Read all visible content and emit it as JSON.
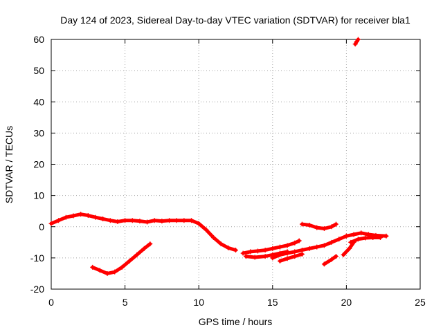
{
  "chart_data": {
    "type": "scatter",
    "title": "Day 124 of 2023, Sidereal Day-to-day VTEC variation (SDTVAR) for receiver bla1",
    "xlabel": "GPS time / hours",
    "ylabel": "SDTVAR / TECUs",
    "xlim": [
      0,
      25
    ],
    "ylim": [
      -20,
      60
    ],
    "xticks": [
      0,
      5,
      10,
      15,
      20,
      25
    ],
    "yticks": [
      -20,
      -10,
      0,
      10,
      20,
      30,
      40,
      50,
      60
    ],
    "grid": true,
    "marker": "+",
    "color": "#ff0000",
    "series": [
      {
        "name": "main-track",
        "points": [
          [
            0.0,
            1.0
          ],
          [
            0.5,
            2.0
          ],
          [
            1.0,
            3.0
          ],
          [
            1.5,
            3.5
          ],
          [
            2.0,
            4.0
          ],
          [
            2.5,
            3.6
          ],
          [
            3.0,
            3.0
          ],
          [
            3.5,
            2.5
          ],
          [
            4.0,
            2.0
          ],
          [
            4.5,
            1.6
          ],
          [
            5.0,
            2.0
          ],
          [
            5.5,
            2.0
          ],
          [
            6.0,
            1.8
          ],
          [
            6.5,
            1.5
          ],
          [
            7.0,
            2.0
          ],
          [
            7.5,
            1.8
          ],
          [
            8.0,
            2.0
          ],
          [
            8.5,
            2.0
          ],
          [
            9.0,
            2.0
          ],
          [
            9.5,
            2.0
          ],
          [
            10.0,
            1.0
          ],
          [
            10.5,
            -1.0
          ],
          [
            11.0,
            -3.5
          ],
          [
            11.5,
            -5.5
          ],
          [
            12.0,
            -6.8
          ],
          [
            12.5,
            -7.5
          ]
        ]
      },
      {
        "name": "low-arc",
        "points": [
          [
            2.8,
            -13.0
          ],
          [
            3.3,
            -14.0
          ],
          [
            3.8,
            -15.0
          ],
          [
            4.3,
            -14.5
          ],
          [
            4.8,
            -13.0
          ],
          [
            5.3,
            -11.0
          ],
          [
            5.8,
            -9.0
          ],
          [
            6.3,
            -7.0
          ],
          [
            6.7,
            -5.5
          ]
        ]
      },
      {
        "name": "afternoon-cluster-a",
        "points": [
          [
            13.0,
            -8.5
          ],
          [
            13.5,
            -8.0
          ],
          [
            14.0,
            -7.8
          ],
          [
            14.5,
            -7.5
          ],
          [
            15.0,
            -7.0
          ],
          [
            15.5,
            -6.5
          ],
          [
            16.0,
            -6.0
          ],
          [
            16.5,
            -5.2
          ],
          [
            16.8,
            -4.5
          ]
        ]
      },
      {
        "name": "afternoon-cluster-b",
        "points": [
          [
            13.2,
            -9.5
          ],
          [
            13.8,
            -9.8
          ],
          [
            14.5,
            -9.5
          ],
          [
            15.0,
            -9.0
          ],
          [
            15.5,
            -8.5
          ],
          [
            16.0,
            -8.0
          ]
        ]
      },
      {
        "name": "afternoon-cluster-c",
        "points": [
          [
            15.0,
            -10.0
          ],
          [
            15.5,
            -9.0
          ],
          [
            16.0,
            -8.5
          ],
          [
            16.5,
            -8.0
          ],
          [
            17.0,
            -7.5
          ],
          [
            17.5,
            -7.0
          ],
          [
            18.0,
            -6.5
          ],
          [
            18.5,
            -6.0
          ],
          [
            19.0,
            -5.0
          ],
          [
            19.5,
            -4.0
          ],
          [
            20.0,
            -3.0
          ]
        ]
      },
      {
        "name": "afternoon-cluster-d",
        "points": [
          [
            15.5,
            -11.0
          ],
          [
            16.0,
            -10.2
          ],
          [
            16.5,
            -9.5
          ],
          [
            17.0,
            -8.8
          ]
        ]
      },
      {
        "name": "hump-arc",
        "points": [
          [
            17.0,
            0.8
          ],
          [
            17.5,
            0.5
          ],
          [
            18.0,
            -0.3
          ],
          [
            18.5,
            -0.6
          ],
          [
            19.0,
            0.0
          ],
          [
            19.3,
            0.8
          ]
        ]
      },
      {
        "name": "short-dash-1",
        "points": [
          [
            18.5,
            -12.0
          ],
          [
            19.0,
            -10.5
          ],
          [
            19.3,
            -9.5
          ]
        ]
      },
      {
        "name": "short-dash-2",
        "points": [
          [
            19.8,
            -9.0
          ],
          [
            20.2,
            -7.0
          ],
          [
            20.5,
            -5.0
          ]
        ]
      },
      {
        "name": "late-cluster-a",
        "points": [
          [
            20.0,
            -3.0
          ],
          [
            20.5,
            -2.5
          ],
          [
            21.0,
            -2.0
          ],
          [
            21.5,
            -2.5
          ],
          [
            22.0,
            -2.8
          ],
          [
            22.7,
            -3.0
          ]
        ]
      },
      {
        "name": "late-cluster-b",
        "points": [
          [
            20.3,
            -5.0
          ],
          [
            20.8,
            -4.0
          ],
          [
            21.3,
            -3.6
          ],
          [
            21.8,
            -3.5
          ],
          [
            22.3,
            -3.5
          ]
        ]
      },
      {
        "name": "top-outlier",
        "points": [
          [
            20.6,
            58.5
          ],
          [
            20.7,
            59.3
          ],
          [
            20.8,
            60.0
          ]
        ]
      }
    ]
  }
}
